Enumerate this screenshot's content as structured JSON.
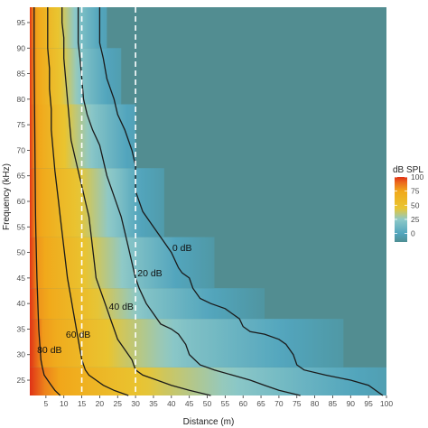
{
  "chart_data": {
    "type": "heatmap",
    "title": "",
    "xlabel": "Distance (m)",
    "ylabel": "Frequency (kHz)",
    "xlim": [
      0.5,
      100
    ],
    "ylim": [
      22,
      98
    ],
    "x_ticks": [
      5,
      10,
      15,
      20,
      25,
      30,
      35,
      40,
      45,
      50,
      55,
      60,
      65,
      70,
      75,
      80,
      85,
      90,
      95,
      100
    ],
    "y_ticks": [
      25,
      30,
      35,
      40,
      45,
      50,
      55,
      60,
      65,
      70,
      75,
      80,
      85,
      90,
      95
    ],
    "x_tick_labels": [
      "5",
      "10",
      "15",
      "20",
      "25",
      "30",
      "35",
      "40",
      "45",
      "50",
      "55",
      "60",
      "65",
      "70",
      "75",
      "80",
      "85",
      "90",
      "95",
      "100"
    ],
    "y_tick_labels": [
      "25",
      "30",
      "35",
      "40",
      "45",
      "50",
      "55",
      "60",
      "65",
      "70",
      "75",
      "80",
      "85",
      "90",
      "95"
    ],
    "frequency_bands": [
      {
        "y0": 22,
        "y1": 27.5,
        "cut_x": 100
      },
      {
        "y0": 27.5,
        "y1": 37,
        "cut_x": 88
      },
      {
        "y0": 37,
        "y1": 43,
        "cut_x": 66
      },
      {
        "y0": 43,
        "y1": 53,
        "cut_x": 52
      },
      {
        "y0": 53,
        "y1": 66.5,
        "cut_x": 38
      },
      {
        "y0": 66.5,
        "y1": 79,
        "cut_x": 30
      },
      {
        "y0": 79,
        "y1": 90,
        "cut_x": 26
      },
      {
        "y0": 90,
        "y1": 98,
        "cut_x": 22
      }
    ],
    "colorscale": {
      "title": "dB SPL",
      "range": [
        -15,
        100
      ],
      "ticks": [
        100,
        75,
        50,
        25,
        0
      ],
      "tick_labels": [
        "100",
        "75",
        "50",
        "25",
        "0"
      ],
      "stops": [
        {
          "value": -15,
          "color": "#4e8e93"
        },
        {
          "value": 0,
          "color": "#52a5bd"
        },
        {
          "value": 25,
          "color": "#8ec9c8"
        },
        {
          "value": 45,
          "color": "#e9c531"
        },
        {
          "value": 75,
          "color": "#f1a81a"
        },
        {
          "value": 90,
          "color": "#eb6a1c"
        },
        {
          "value": 100,
          "color": "#e03216"
        }
      ]
    },
    "background_color": "#528d91",
    "contours": [
      {
        "level": 0,
        "label": "0 dB",
        "points": [
          [
            99,
            22
          ],
          [
            95,
            24
          ],
          [
            90,
            25
          ],
          [
            83,
            26
          ],
          [
            77,
            27
          ],
          [
            75,
            28
          ],
          [
            74,
            30
          ],
          [
            72,
            32
          ],
          [
            70,
            33
          ],
          [
            66,
            34
          ],
          [
            62,
            34.5
          ],
          [
            60,
            35.5
          ],
          [
            59,
            37
          ],
          [
            57,
            38
          ],
          [
            55,
            39
          ],
          [
            51,
            40
          ],
          [
            48,
            41
          ],
          [
            46,
            43
          ],
          [
            45,
            45
          ],
          [
            43,
            46
          ],
          [
            42,
            47
          ],
          [
            40,
            50
          ],
          [
            38,
            52
          ],
          [
            36,
            54
          ],
          [
            34,
            56
          ],
          [
            32,
            58
          ],
          [
            30,
            62
          ],
          [
            30,
            65
          ],
          [
            30,
            67
          ],
          [
            29,
            70
          ],
          [
            27,
            74
          ],
          [
            25,
            77
          ],
          [
            24,
            80
          ],
          [
            22,
            84
          ],
          [
            21,
            88
          ],
          [
            20,
            91
          ],
          [
            20,
            95
          ],
          [
            20,
            98
          ]
        ],
        "label_pos": [
          43,
          51
        ]
      },
      {
        "level": 20,
        "label": "20 dB",
        "points": [
          [
            76,
            22
          ],
          [
            70,
            23
          ],
          [
            66,
            24
          ],
          [
            62,
            25
          ],
          [
            57,
            26
          ],
          [
            52,
            27
          ],
          [
            48,
            28
          ],
          [
            45,
            30
          ],
          [
            44,
            32
          ],
          [
            42,
            34
          ],
          [
            40,
            35
          ],
          [
            37,
            36
          ],
          [
            35,
            38
          ],
          [
            33,
            40
          ],
          [
            31,
            43
          ],
          [
            30,
            45
          ],
          [
            29,
            48
          ],
          [
            28,
            51
          ],
          [
            27,
            54
          ],
          [
            26,
            57
          ],
          [
            24,
            61
          ],
          [
            22,
            65
          ],
          [
            21,
            68
          ],
          [
            20,
            71
          ],
          [
            18,
            74
          ],
          [
            16.5,
            77
          ],
          [
            15.5,
            80
          ],
          [
            15,
            84
          ],
          [
            14.5,
            88
          ],
          [
            14,
            91
          ],
          [
            14,
            95
          ],
          [
            14,
            98
          ]
        ],
        "label_pos": [
          34,
          46
        ]
      },
      {
        "level": 40,
        "label": "40 dB",
        "points": [
          [
            51,
            22
          ],
          [
            45,
            23
          ],
          [
            40,
            24
          ],
          [
            36,
            25
          ],
          [
            32,
            26
          ],
          [
            30,
            27
          ],
          [
            29,
            29
          ],
          [
            27,
            31
          ],
          [
            25,
            33
          ],
          [
            24,
            35
          ],
          [
            23,
            37
          ],
          [
            22,
            39
          ],
          [
            21,
            41
          ],
          [
            20,
            43
          ],
          [
            19,
            45
          ],
          [
            18.5,
            48
          ],
          [
            18,
            51
          ],
          [
            17.5,
            54
          ],
          [
            17,
            57
          ],
          [
            16,
            60
          ],
          [
            15,
            63
          ],
          [
            14,
            66
          ],
          [
            13,
            69
          ],
          [
            12,
            72
          ],
          [
            11.5,
            76
          ],
          [
            11,
            80
          ],
          [
            10.5,
            84
          ],
          [
            10,
            88
          ],
          [
            10,
            92
          ],
          [
            9.5,
            95
          ],
          [
            9.5,
            98
          ]
        ],
        "label_pos": [
          26,
          39.5
        ]
      },
      {
        "level": 60,
        "label": "60 dB",
        "points": [
          [
            28,
            22
          ],
          [
            24,
            23
          ],
          [
            21,
            24
          ],
          [
            19,
            25
          ],
          [
            17,
            26
          ],
          [
            16,
            27
          ],
          [
            15,
            29
          ],
          [
            14.5,
            31
          ],
          [
            14,
            33
          ],
          [
            13.5,
            35
          ],
          [
            13,
            37
          ],
          [
            12.5,
            39
          ],
          [
            12,
            41
          ],
          [
            11.5,
            43
          ],
          [
            11,
            45
          ],
          [
            10.5,
            48
          ],
          [
            10,
            51
          ],
          [
            9.5,
            54
          ],
          [
            9,
            57
          ],
          [
            8.5,
            60
          ],
          [
            8,
            63
          ],
          [
            7.5,
            66
          ],
          [
            7,
            70
          ],
          [
            6.5,
            74
          ],
          [
            6.5,
            78
          ],
          [
            6,
            82
          ],
          [
            6,
            86
          ],
          [
            5.5,
            90
          ],
          [
            5.5,
            94
          ],
          [
            5.5,
            98
          ]
        ],
        "label_pos": [
          14,
          34
        ]
      },
      {
        "level": 80,
        "label": "80 dB",
        "points": [
          [
            9,
            22
          ],
          [
            7.5,
            23
          ],
          [
            6.5,
            24
          ],
          [
            5.5,
            25
          ],
          [
            4.5,
            26
          ],
          [
            4,
            27.5
          ],
          [
            3.6,
            29
          ],
          [
            3.4,
            31
          ],
          [
            3.2,
            33
          ],
          [
            3,
            35
          ],
          [
            2.9,
            37
          ],
          [
            2.8,
            39
          ],
          [
            2.7,
            41
          ],
          [
            2.6,
            43
          ],
          [
            2.5,
            45
          ],
          [
            2.4,
            48
          ],
          [
            2.3,
            51
          ],
          [
            2.2,
            54
          ],
          [
            2.1,
            57
          ],
          [
            2.05,
            60
          ],
          [
            2,
            64
          ],
          [
            1.95,
            68
          ],
          [
            1.9,
            72
          ],
          [
            1.85,
            76
          ],
          [
            1.8,
            80
          ],
          [
            1.75,
            84
          ],
          [
            1.7,
            88
          ],
          [
            1.7,
            92
          ],
          [
            1.7,
            98
          ]
        ],
        "label_pos": [
          6,
          31
        ]
      }
    ],
    "reference_lines_x": [
      15,
      30
    ],
    "legend_position": "right"
  }
}
